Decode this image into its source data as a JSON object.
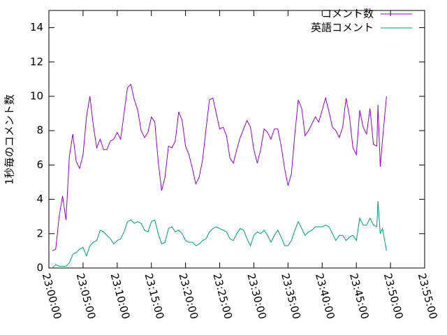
{
  "chart_data": {
    "type": "line",
    "ylabel": "1秒毎のコメント数",
    "xlim": [
      0,
      3300
    ],
    "xticks": [
      {
        "value": 0,
        "label": "23:00:00"
      },
      {
        "value": 300,
        "label": "23:05:00"
      },
      {
        "value": 600,
        "label": "23:10:00"
      },
      {
        "value": 900,
        "label": "23:15:00"
      },
      {
        "value": 1200,
        "label": "23:20:00"
      },
      {
        "value": 1500,
        "label": "23:25:00"
      },
      {
        "value": 1800,
        "label": "23:30:00"
      },
      {
        "value": 2100,
        "label": "23:35:00"
      },
      {
        "value": 2400,
        "label": "23:40:00"
      },
      {
        "value": 2700,
        "label": "23:45:00"
      },
      {
        "value": 3000,
        "label": "23:50:00"
      },
      {
        "value": 3300,
        "label": "23:55:00"
      }
    ],
    "ylim": [
      0,
      15
    ],
    "yticks": [
      0,
      2,
      4,
      6,
      8,
      10,
      12,
      14
    ],
    "legend": "top-right",
    "x": [
      30,
      60,
      90,
      120,
      150,
      180,
      210,
      240,
      270,
      300,
      330,
      360,
      390,
      420,
      450,
      480,
      510,
      540,
      570,
      600,
      630,
      660,
      690,
      720,
      750,
      780,
      810,
      840,
      870,
      900,
      930,
      960,
      990,
      1020,
      1050,
      1080,
      1110,
      1140,
      1170,
      1200,
      1230,
      1260,
      1290,
      1320,
      1350,
      1380,
      1410,
      1440,
      1470,
      1500,
      1530,
      1560,
      1590,
      1620,
      1650,
      1680,
      1710,
      1740,
      1770,
      1800,
      1830,
      1860,
      1890,
      1920,
      1950,
      1980,
      2010,
      2040,
      2070,
      2100,
      2130,
      2160,
      2190,
      2220,
      2250,
      2280,
      2310,
      2340,
      2370,
      2400,
      2430,
      2460,
      2490,
      2520,
      2550,
      2580,
      2610,
      2640,
      2670,
      2700,
      2730,
      2760,
      2790,
      2820,
      2850,
      2880,
      2890,
      2910,
      2930,
      2965
    ],
    "series": [
      {
        "name": "コメント数",
        "color": "#9400d3",
        "values": [
          1.0,
          1.1,
          3.0,
          4.2,
          2.8,
          6.5,
          7.8,
          6.2,
          5.8,
          6.6,
          8.8,
          10.0,
          8.3,
          7.0,
          7.5,
          6.9,
          6.9,
          7.4,
          7.5,
          7.9,
          7.5,
          9.0,
          10.5,
          10.7,
          9.8,
          9.2,
          8.0,
          7.6,
          7.9,
          8.8,
          8.5,
          6.2,
          4.5,
          5.3,
          7.1,
          7.0,
          7.4,
          9.1,
          8.6,
          7.1,
          6.6,
          5.8,
          4.9,
          5.3,
          6.3,
          8.1,
          9.8,
          9.9,
          9.0,
          8.1,
          8.2,
          7.7,
          6.4,
          6.1,
          6.9,
          7.6,
          8.1,
          8.6,
          8.2,
          6.9,
          6.1,
          6.9,
          8.1,
          7.9,
          7.5,
          8.1,
          8.1,
          7.1,
          5.8,
          4.8,
          5.5,
          7.8,
          9.8,
          9.3,
          7.7,
          8.0,
          8.4,
          8.8,
          8.5,
          9.2,
          9.9,
          9.1,
          8.2,
          8.0,
          7.6,
          8.2,
          9.9,
          8.8,
          7.0,
          6.6,
          9.2,
          8.2,
          7.8,
          9.3,
          7.2,
          7.1,
          9.5,
          5.9,
          7.5,
          10.0
        ]
      },
      {
        "name": "英語コメント",
        "color": "#009e73",
        "values": [
          0.0,
          0.2,
          0.1,
          0.1,
          0.1,
          0.3,
          0.8,
          0.9,
          1.1,
          1.2,
          0.7,
          1.3,
          1.5,
          1.6,
          2.2,
          2.1,
          1.9,
          1.7,
          1.4,
          1.6,
          1.7,
          2.1,
          2.7,
          2.8,
          2.6,
          2.7,
          2.6,
          2.2,
          2.1,
          2.7,
          2.8,
          2.0,
          1.4,
          1.5,
          2.3,
          2.4,
          2.1,
          2.2,
          2.0,
          1.6,
          1.5,
          1.5,
          1.3,
          1.4,
          1.6,
          1.7,
          2.1,
          2.3,
          2.4,
          2.3,
          2.2,
          2.1,
          1.7,
          1.6,
          2.0,
          2.3,
          2.2,
          1.7,
          1.3,
          1.9,
          2.1,
          2.0,
          2.2,
          1.9,
          1.5,
          1.9,
          2.2,
          1.8,
          1.3,
          1.3,
          1.6,
          2.2,
          2.7,
          2.3,
          1.9,
          2.1,
          2.2,
          2.4,
          2.4,
          2.4,
          2.5,
          2.4,
          2.0,
          1.6,
          1.9,
          1.9,
          1.6,
          1.8,
          1.9,
          1.6,
          2.9,
          2.5,
          2.5,
          2.9,
          2.5,
          2.4,
          3.9,
          2.0,
          2.3,
          1.0
        ]
      }
    ]
  }
}
